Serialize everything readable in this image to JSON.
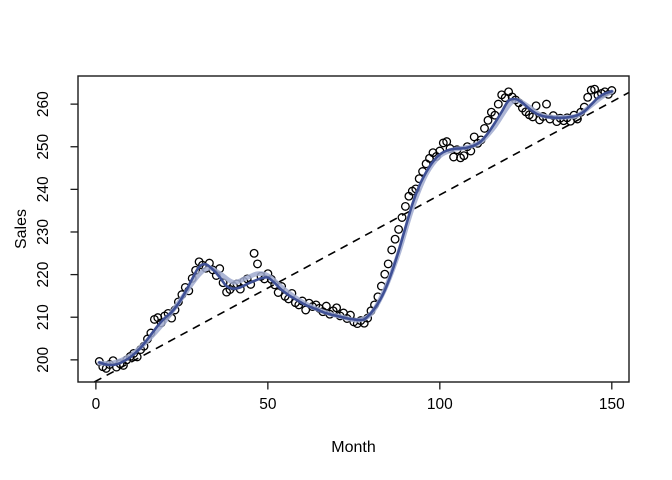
{
  "figure": {
    "background": "#ffffff"
  },
  "chart_data": {
    "type": "scatter",
    "title": "",
    "xlabel": "Month",
    "ylabel": "Sales",
    "x_ticks": [
      0,
      50,
      100,
      150
    ],
    "y_ticks": [
      200,
      210,
      220,
      230,
      240,
      250,
      260
    ],
    "xlim": [
      -5.2,
      155.0
    ],
    "ylim": [
      194.8,
      266.6
    ],
    "grid": false,
    "legend": false,
    "point_style": {
      "shape": "open-circle",
      "stroke": "#000000"
    },
    "points": {
      "month_start": 1,
      "sales": [
        199.6,
        198.4,
        198.0,
        198.9,
        199.8,
        198.3,
        199.1,
        198.7,
        200.0,
        200.8,
        201.5,
        200.7,
        202.4,
        203.2,
        204.9,
        206.3,
        209.5,
        209.9,
        208.7,
        210.3,
        210.9,
        209.8,
        211.7,
        213.6,
        215.3,
        217.0,
        216.2,
        219.1,
        221.0,
        223.0,
        222.2,
        221.5,
        222.7,
        221.1,
        219.8,
        221.4,
        218.1,
        215.9,
        216.5,
        217.3,
        217.8,
        216.6,
        218.4,
        219.0,
        217.7,
        225.0,
        222.5,
        219.6,
        219.0,
        220.2,
        218.9,
        217.6,
        215.8,
        217.2,
        214.9,
        214.3,
        215.6,
        213.4,
        212.9,
        213.8,
        211.7,
        213.3,
        212.5,
        212.9,
        212.1,
        211.3,
        212.6,
        210.7,
        211.5,
        212.2,
        210.3,
        211.0,
        209.7,
        210.5,
        208.9,
        208.5,
        209.2,
        208.6,
        209.8,
        211.5,
        212.9,
        214.8,
        217.3,
        220.1,
        222.5,
        225.8,
        228.3,
        230.6,
        233.4,
        236.0,
        238.4,
        239.6,
        240.1,
        242.5,
        244.2,
        246.0,
        247.3,
        248.6,
        247.7,
        249.0,
        250.9,
        251.2,
        249.6,
        247.6,
        249.3,
        247.4,
        247.9,
        250.0,
        249.0,
        252.3,
        250.8,
        251.6,
        254.3,
        256.2,
        258.1,
        257.4,
        260.0,
        262.2,
        261.5,
        262.9,
        261.7,
        261.0,
        260.3,
        259.1,
        258.2,
        257.5,
        257.0,
        259.6,
        256.3,
        257.1,
        260.0,
        256.5,
        257.3,
        255.9,
        256.7,
        256.1,
        256.8,
        256.0,
        257.4,
        256.5,
        258.1,
        259.3,
        261.6,
        263.3,
        263.5,
        262.1,
        262.5,
        262.9,
        262.3,
        263.2
      ]
    },
    "smooth_dark": {
      "name": "lowess smooth (dark)",
      "color": "#3F5095",
      "width": 2.6,
      "m": [
        1,
        3,
        5,
        7,
        10,
        13,
        16,
        18,
        20,
        22,
        24,
        26,
        28,
        30,
        32,
        34,
        36,
        38,
        40,
        42,
        44,
        46,
        48,
        50,
        52,
        54,
        56,
        58,
        60,
        62,
        64,
        66,
        68,
        70,
        72,
        74,
        76,
        78,
        80,
        82,
        84,
        86,
        88,
        90,
        92,
        94,
        96,
        98,
        100,
        102,
        104,
        106,
        108,
        110,
        112,
        114,
        116,
        118,
        120,
        122,
        124,
        126,
        128,
        130,
        132,
        134,
        136,
        138,
        140,
        142,
        144,
        146,
        148,
        150
      ],
      "sales": [
        199.4,
        198.9,
        198.8,
        199.2,
        200.6,
        202.8,
        205.9,
        208.0,
        209.8,
        211.2,
        213.2,
        215.9,
        219.0,
        221.8,
        222.4,
        221.2,
        219.4,
        217.3,
        216.7,
        217.0,
        217.8,
        218.5,
        219.1,
        219.3,
        218.0,
        216.4,
        215.2,
        214.2,
        213.3,
        212.5,
        211.9,
        211.2,
        210.7,
        210.3,
        209.9,
        209.6,
        209.4,
        209.5,
        211.0,
        213.2,
        216.3,
        220.5,
        225.5,
        231.0,
        236.5,
        240.8,
        244.0,
        246.5,
        248.2,
        249.1,
        249.5,
        249.6,
        249.8,
        250.3,
        251.3,
        253.2,
        255.6,
        258.2,
        260.8,
        261.2,
        260.3,
        258.9,
        257.8,
        257.2,
        256.9,
        256.8,
        256.8,
        257.0,
        257.4,
        258.3,
        259.9,
        261.5,
        262.5,
        263.0
      ]
    },
    "smooth_light": {
      "name": "lowess smooth (light halo)",
      "color": "#A0AACF",
      "width": 4.6,
      "m": [
        1,
        5,
        10,
        15,
        20,
        25,
        30,
        33,
        36,
        40,
        44,
        47,
        50,
        53,
        56,
        60,
        64,
        68,
        72,
        76,
        80,
        84,
        88,
        92,
        96,
        100,
        104,
        108,
        112,
        116,
        119,
        121,
        123,
        126,
        129,
        132,
        136,
        140,
        144,
        147,
        150
      ],
      "sales": [
        199.2,
        199.3,
        201.0,
        204.5,
        209.0,
        214.5,
        220.0,
        221.5,
        220.3,
        218.2,
        219.3,
        220.2,
        219.8,
        217.8,
        215.8,
        213.6,
        212.0,
        210.8,
        210.0,
        209.3,
        210.8,
        216.5,
        225.0,
        235.5,
        243.5,
        247.8,
        249.3,
        249.9,
        251.2,
        254.8,
        258.5,
        260.5,
        260.8,
        259.3,
        257.6,
        257.0,
        256.9,
        257.3,
        259.7,
        261.6,
        262.9
      ]
    },
    "trend": {
      "name": "linear trend",
      "style": "dashed",
      "color": "#000000",
      "intercept": 195.0,
      "slope": 0.437
    }
  }
}
